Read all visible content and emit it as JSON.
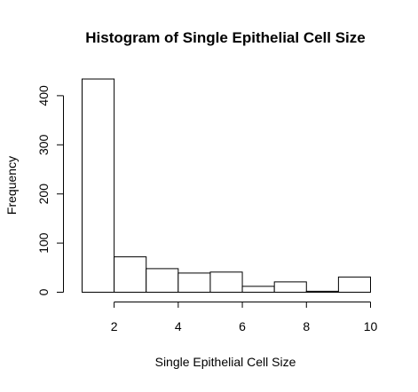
{
  "chart_data": {
    "type": "bar",
    "subtype": "histogram",
    "title": "Histogram of Single Epithelial Cell Size",
    "xlabel": "Single Epithelial Cell Size",
    "ylabel": "Frequency",
    "xlim": [
      1,
      10
    ],
    "ylim": [
      0,
      435
    ],
    "x_ticks": [
      2,
      4,
      6,
      8,
      10
    ],
    "y_ticks": [
      0,
      100,
      200,
      300,
      400
    ],
    "bins": [
      {
        "start": 1,
        "end": 2,
        "value": 434
      },
      {
        "start": 2,
        "end": 3,
        "value": 72
      },
      {
        "start": 3,
        "end": 4,
        "value": 48
      },
      {
        "start": 4,
        "end": 5,
        "value": 39
      },
      {
        "start": 5,
        "end": 6,
        "value": 41
      },
      {
        "start": 6,
        "end": 7,
        "value": 12
      },
      {
        "start": 7,
        "end": 8,
        "value": 21
      },
      {
        "start": 8,
        "end": 9,
        "value": 2
      },
      {
        "start": 9,
        "end": 10,
        "value": 31
      }
    ],
    "grid": false,
    "legend": "none",
    "colors": {
      "bar_fill": "#ffffff",
      "bar_stroke": "#000000",
      "axis": "#000000",
      "text": "#000000"
    }
  }
}
